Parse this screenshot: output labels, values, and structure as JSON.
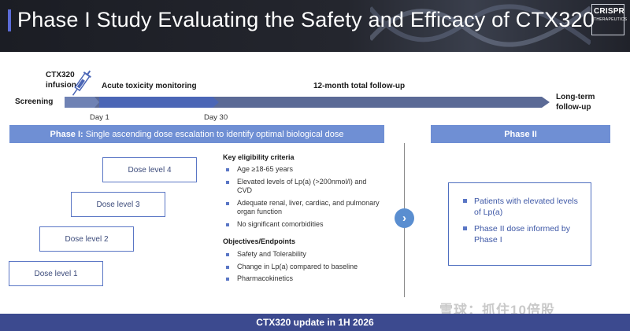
{
  "header": {
    "title": "Phase I Study Evaluating the Safety and Efficacy of CTX320",
    "logo_line1": "CRISPR",
    "logo_line2": "THERAPEUTICS"
  },
  "timeline": {
    "screening": "Screening",
    "infusion_line1": "CTX320",
    "infusion_line2": "infusion",
    "acute": "Acute toxicity monitoring",
    "followup": "12-month total follow-up",
    "longterm_line1": "Long-term",
    "longterm_line2": "follow-up",
    "day1": "Day 1",
    "day30": "Day 30"
  },
  "phase1": {
    "label_bold": "Phase I:",
    "label_rest": "Single ascending dose escalation to identify optimal biological dose",
    "dose_levels": [
      "Dose level 4",
      "Dose level 3",
      "Dose level 2",
      "Dose level 1"
    ],
    "criteria_heading": "Key eligibility criteria",
    "criteria": [
      "Age ≥18-65 years",
      "Elevated levels of Lp(a) (>200nmol/l) and CVD",
      "Adequate renal, liver, cardiac, and pulmonary organ function",
      "No significant comorbidities"
    ],
    "objectives_heading": "Objectives/Endpoints",
    "objectives": [
      "Safety and Tolerability",
      "Change in Lp(a) compared to baseline",
      "Pharmacokinetics"
    ]
  },
  "transition": {
    "chevron": "›"
  },
  "phase2": {
    "label": "Phase II",
    "bullets": [
      "Patients with elevated levels of Lp(a)",
      "Phase II dose informed by Phase I"
    ]
  },
  "footer": {
    "text": "CTX320 update in 1H 2026"
  },
  "watermark": {
    "text": "雪球：抓住10倍股"
  },
  "colors": {
    "accent_bar": "#6f8fd4",
    "footer": "#3c4a8f",
    "arrow": "#5b6a96",
    "bullet": "#5a76c5"
  }
}
